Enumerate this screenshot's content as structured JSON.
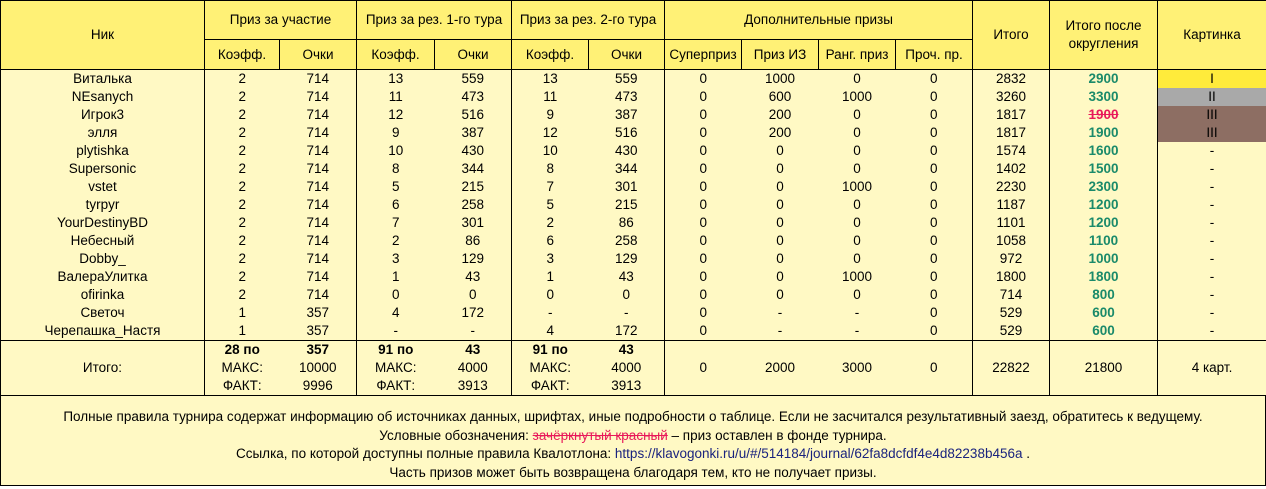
{
  "header": {
    "nick": "Ник",
    "participation": "Приз за участие",
    "round1": "Приз за рез. 1-го тура",
    "round2": "Приз за рез. 2-го тура",
    "extra": "Дополнительные призы",
    "total": "Итого",
    "total_rounded": "Итого после округления",
    "picture": "Картинка",
    "coef": "Коэфф.",
    "points": "Очки",
    "superprize": "Суперприз",
    "prize_iz": "Приз ИЗ",
    "rank_prize": "Ранг. приз",
    "other_prize": "Проч. пр."
  },
  "rows": [
    {
      "nick": "Виталька",
      "p_coef": "2",
      "p_pts": "714",
      "r1_coef": "13",
      "r1_pts": "559",
      "r2_coef": "13",
      "r2_pts": "559",
      "super": "0",
      "iz": "1000",
      "rank": "0",
      "other": "0",
      "total": "2832",
      "rounded": "2900",
      "rounded_struck": false,
      "picture": "I",
      "pic_class": "pic-gold"
    },
    {
      "nick": "NEsanych",
      "p_coef": "2",
      "p_pts": "714",
      "r1_coef": "11",
      "r1_pts": "473",
      "r2_coef": "11",
      "r2_pts": "473",
      "super": "0",
      "iz": "600",
      "rank": "1000",
      "other": "0",
      "total": "3260",
      "rounded": "3300",
      "rounded_struck": false,
      "picture": "II",
      "pic_class": "pic-silver"
    },
    {
      "nick": "Игрок3",
      "p_coef": "2",
      "p_pts": "714",
      "r1_coef": "12",
      "r1_pts": "516",
      "r2_coef": "9",
      "r2_pts": "387",
      "super": "0",
      "iz": "200",
      "rank": "0",
      "other": "0",
      "total": "1817",
      "rounded": "1900",
      "rounded_struck": true,
      "picture": "III",
      "pic_class": "pic-bronze"
    },
    {
      "nick": "элля",
      "p_coef": "2",
      "p_pts": "714",
      "r1_coef": "9",
      "r1_pts": "387",
      "r2_coef": "12",
      "r2_pts": "516",
      "super": "0",
      "iz": "200",
      "rank": "0",
      "other": "0",
      "total": "1817",
      "rounded": "1900",
      "rounded_struck": false,
      "picture": "III",
      "pic_class": "pic-bronze"
    },
    {
      "nick": "plytishka",
      "p_coef": "2",
      "p_pts": "714",
      "r1_coef": "10",
      "r1_pts": "430",
      "r2_coef": "10",
      "r2_pts": "430",
      "super": "0",
      "iz": "0",
      "rank": "0",
      "other": "0",
      "total": "1574",
      "rounded": "1600",
      "rounded_struck": false,
      "picture": "-",
      "pic_class": "pic-empty"
    },
    {
      "nick": "Supersonic",
      "p_coef": "2",
      "p_pts": "714",
      "r1_coef": "8",
      "r1_pts": "344",
      "r2_coef": "8",
      "r2_pts": "344",
      "super": "0",
      "iz": "0",
      "rank": "0",
      "other": "0",
      "total": "1402",
      "rounded": "1500",
      "rounded_struck": false,
      "picture": "-",
      "pic_class": "pic-empty"
    },
    {
      "nick": "vstet",
      "p_coef": "2",
      "p_pts": "714",
      "r1_coef": "5",
      "r1_pts": "215",
      "r2_coef": "7",
      "r2_pts": "301",
      "super": "0",
      "iz": "0",
      "rank": "1000",
      "other": "0",
      "total": "2230",
      "rounded": "2300",
      "rounded_struck": false,
      "picture": "-",
      "pic_class": "pic-empty"
    },
    {
      "nick": "tyrpyr",
      "p_coef": "2",
      "p_pts": "714",
      "r1_coef": "6",
      "r1_pts": "258",
      "r2_coef": "5",
      "r2_pts": "215",
      "super": "0",
      "iz": "0",
      "rank": "0",
      "other": "0",
      "total": "1187",
      "rounded": "1200",
      "rounded_struck": false,
      "picture": "-",
      "pic_class": "pic-empty"
    },
    {
      "nick": "YourDestinyBD",
      "p_coef": "2",
      "p_pts": "714",
      "r1_coef": "7",
      "r1_pts": "301",
      "r2_coef": "2",
      "r2_pts": "86",
      "super": "0",
      "iz": "0",
      "rank": "0",
      "other": "0",
      "total": "1101",
      "rounded": "1200",
      "rounded_struck": false,
      "picture": "-",
      "pic_class": "pic-empty"
    },
    {
      "nick": "Небесный",
      "p_coef": "2",
      "p_pts": "714",
      "r1_coef": "2",
      "r1_pts": "86",
      "r2_coef": "6",
      "r2_pts": "258",
      "super": "0",
      "iz": "0",
      "rank": "0",
      "other": "0",
      "total": "1058",
      "rounded": "1100",
      "rounded_struck": false,
      "picture": "-",
      "pic_class": "pic-empty"
    },
    {
      "nick": "Dobby_",
      "p_coef": "2",
      "p_pts": "714",
      "r1_coef": "3",
      "r1_pts": "129",
      "r2_coef": "3",
      "r2_pts": "129",
      "super": "0",
      "iz": "0",
      "rank": "0",
      "other": "0",
      "total": "972",
      "rounded": "1000",
      "rounded_struck": false,
      "picture": "-",
      "pic_class": "pic-empty"
    },
    {
      "nick": "ВалераУлитка",
      "p_coef": "2",
      "p_pts": "714",
      "r1_coef": "1",
      "r1_pts": "43",
      "r2_coef": "1",
      "r2_pts": "43",
      "super": "0",
      "iz": "0",
      "rank": "1000",
      "other": "0",
      "total": "1800",
      "rounded": "1800",
      "rounded_struck": false,
      "picture": "-",
      "pic_class": "pic-empty"
    },
    {
      "nick": "ofirinka",
      "p_coef": "2",
      "p_pts": "714",
      "r1_coef": "0",
      "r1_pts": "0",
      "r2_coef": "0",
      "r2_pts": "0",
      "super": "0",
      "iz": "0",
      "rank": "0",
      "other": "0",
      "total": "714",
      "rounded": "800",
      "rounded_struck": false,
      "picture": "-",
      "pic_class": "pic-empty"
    },
    {
      "nick": "Светоч",
      "p_coef": "1",
      "p_pts": "357",
      "r1_coef": "4",
      "r1_pts": "172",
      "r2_coef": "-",
      "r2_pts": "-",
      "super": "0",
      "iz": "-",
      "rank": "-",
      "other": "0",
      "total": "529",
      "rounded": "600",
      "rounded_struck": false,
      "picture": "-",
      "pic_class": "pic-empty"
    },
    {
      "nick": "Черепашка_Настя",
      "p_coef": "1",
      "p_pts": "357",
      "r1_coef": "-",
      "r1_pts": "-",
      "r2_coef": "4",
      "r2_pts": "172",
      "super": "0",
      "iz": "-",
      "rank": "-",
      "other": "0",
      "total": "529",
      "rounded": "600",
      "rounded_struck": false,
      "picture": "-",
      "pic_class": "pic-empty"
    }
  ],
  "totals": {
    "label": "Итого:",
    "participation": {
      "per_label": "28 по",
      "per_value": "357",
      "max_label": "МАКС:",
      "max_value": "10000",
      "fact_label": "ФАКТ:",
      "fact_value": "9996"
    },
    "round1": {
      "per_label": "91 по",
      "per_value": "43",
      "max_label": "МАКС:",
      "max_value": "4000",
      "fact_label": "ФАКТ:",
      "fact_value": "3913"
    },
    "round2": {
      "per_label": "91 по",
      "per_value": "43",
      "max_label": "МАКС:",
      "max_value": "4000",
      "fact_label": "ФАКТ:",
      "fact_value": "3913"
    },
    "super": "0",
    "iz": "2000",
    "rank": "3000",
    "other": "0",
    "total": "22822",
    "rounded": "21800",
    "picture": "4 карт."
  },
  "notes": {
    "line1": "Полные правила турнира содержат информацию об источниках данных, шрифтах, иные подробности о таблице. Если не засчитался результативный заезд, обратитесь к ведущему.",
    "line2_prefix": "Условные обозначения: ",
    "line2_red": "зачёркнутый красный",
    "line2_suffix": " – приз оставлен в фонде турнира.",
    "line3_prefix": "Ссылка, по которой доступны полные правила Квалотлона: ",
    "line3_link": "https://klavogonki.ru/u/#/514184/journal/62fa8dcfdf4e4d82238b456a",
    "line3_suffix": " .",
    "line4": "Часть призов может быть возвращена благодаря тем, кто не получает призы."
  },
  "colors": {
    "header_bg": "#fff176",
    "body_bg": "#fff9c4",
    "rounded_green": "#1a8a6a",
    "struck_red": "#e8185a",
    "gold": "#ffeb3b",
    "silver": "#a9a9a9",
    "bronze": "#8d6e63",
    "link": "#1a237e"
  }
}
